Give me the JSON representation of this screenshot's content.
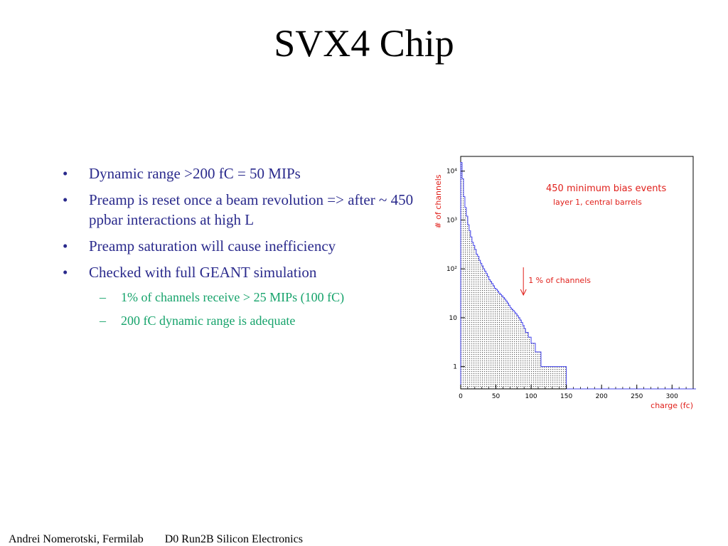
{
  "slide": {
    "title": "SVX4 Chip",
    "bullets": [
      {
        "text": "Dynamic range >200 fC  = 50 MIPs"
      },
      {
        "text": "Preamp is reset once a beam revolution => after ~ 450 ppbar interactions at high L"
      },
      {
        "text": "Preamp saturation will cause inefficiency"
      },
      {
        "text": "Checked with full GEANT simulation"
      }
    ],
    "subbullets": [
      {
        "text": "1% of channels receive > 25 MIPs (100 fC)"
      },
      {
        "text": "200 fC dynamic range is adequate"
      }
    ],
    "footer": {
      "author": "Andrei Nomerotski, Fermilab",
      "talk": "D0 Run2B Silicon Electronics"
    }
  },
  "colors": {
    "bullet_text": "#2a2a8c",
    "subbullet_text": "#16a36b",
    "chart_text": "#e0201b",
    "histogram_line": "#4444ee"
  },
  "chart_data": {
    "type": "bar",
    "ylabel": "# of channels",
    "xlabel": "charge (fc)",
    "annotation_title": "450 minimum bias events",
    "annotation_subtitle": "layer 1, central barrels",
    "arrow_label": "1 % of channels",
    "arrow_x": 89,
    "y_scale": "log",
    "xlim": [
      0,
      330
    ],
    "ylim": [
      0.35,
      20000
    ],
    "x_ticks": [
      0,
      50,
      100,
      150,
      200,
      250,
      300
    ],
    "y_ticks": [
      {
        "value": 1,
        "label": "1"
      },
      {
        "value": 10,
        "label": "10"
      },
      {
        "value": 100,
        "label": "10²"
      },
      {
        "value": 1000,
        "label": "10³"
      },
      {
        "value": 10000,
        "label": "10⁴"
      }
    ],
    "bin_width": 2,
    "values": [
      15000,
      7000,
      3000,
      1800,
      1200,
      800,
      600,
      450,
      350,
      300,
      250,
      200,
      180,
      150,
      130,
      115,
      100,
      90,
      80,
      70,
      60,
      55,
      50,
      45,
      40,
      38,
      35,
      32,
      30,
      28,
      26,
      24,
      22,
      20,
      18,
      16,
      15,
      14,
      13,
      12,
      11,
      10,
      9,
      8,
      7,
      6,
      5,
      5,
      4,
      4,
      3,
      3,
      3,
      2,
      2,
      2,
      2,
      1,
      1,
      1,
      1,
      1,
      1,
      1,
      1,
      1,
      1,
      1,
      1,
      1,
      1,
      1,
      1,
      1,
      1,
      0,
      0,
      0,
      0,
      0,
      0,
      0,
      0,
      0,
      0,
      0,
      0,
      0,
      0,
      0,
      0,
      0,
      0,
      0,
      0,
      0,
      0,
      0,
      0,
      0,
      0,
      0,
      0,
      0,
      0,
      0,
      0,
      0,
      0,
      0,
      0,
      0,
      0,
      0,
      0,
      0,
      0,
      0,
      0,
      0,
      0,
      0,
      0,
      0,
      0,
      0,
      0,
      0,
      0,
      0,
      0,
      0,
      0,
      0,
      0,
      0,
      0,
      0,
      0,
      0,
      0,
      0,
      0,
      0,
      0,
      0,
      0,
      0,
      0,
      0,
      0,
      0,
      0,
      0,
      0,
      0,
      0,
      0,
      0,
      0,
      0,
      0,
      0,
      0,
      0,
      0,
      0
    ]
  }
}
